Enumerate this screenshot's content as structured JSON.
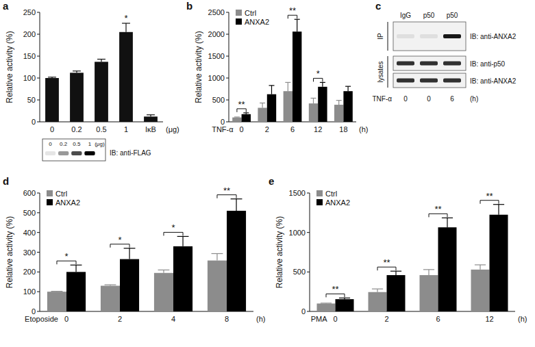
{
  "chart_data": [
    {
      "type": "bar",
      "title": "a",
      "ylabel": "Relative activity (%)",
      "xunit": "(μg)",
      "categories": [
        "0",
        "0.2",
        "0.5",
        "1",
        "IκB"
      ],
      "values": [
        100,
        112,
        137,
        205,
        12
      ],
      "errors": [
        2,
        4,
        6,
        20,
        4
      ],
      "color": "#111111",
      "ylim": [
        0,
        250
      ],
      "yticks": [
        0,
        50,
        100,
        150,
        200,
        250
      ],
      "grid": false,
      "annotations": [
        {
          "category": "1",
          "text": "*"
        }
      ],
      "inset": {
        "lanes": [
          "0",
          "0.2",
          "0.5",
          "1"
        ],
        "unit": "(μg)",
        "label": "IB: anti-FLAG"
      }
    },
    {
      "type": "bar",
      "title": "b",
      "ylabel": "Relative activity (%)",
      "xlabel": "TNF-α",
      "xunit": "(h)",
      "categories": [
        "0",
        "2",
        "6",
        "12",
        "18"
      ],
      "series": [
        {
          "name": "Ctrl",
          "color": "#8c8c8c",
          "values": [
            100,
            320,
            700,
            420,
            390
          ],
          "errors": [
            10,
            110,
            200,
            120,
            100
          ]
        },
        {
          "name": "ANXA2",
          "color": "#000000",
          "values": [
            175,
            630,
            2060,
            800,
            700
          ],
          "errors": [
            30,
            200,
            280,
            100,
            110
          ]
        }
      ],
      "ylim": [
        0,
        2500
      ],
      "yticks": [
        0,
        500,
        1000,
        1500,
        2000,
        2500
      ],
      "grid": false,
      "legend": "upper left",
      "annotations": [
        {
          "category": "0",
          "text": "**"
        },
        {
          "category": "6",
          "text": "**"
        },
        {
          "category": "12",
          "text": "*"
        }
      ]
    },
    {
      "type": "bar",
      "title": "d",
      "ylabel": "Relative activity (%)",
      "xlabel": "Etoposide",
      "xunit": "(h)",
      "categories": [
        "0",
        "2",
        "4",
        "8"
      ],
      "series": [
        {
          "name": "Ctrl",
          "color": "#8c8c8c",
          "values": [
            100,
            130,
            195,
            258
          ],
          "errors": [
            2,
            5,
            15,
            35
          ]
        },
        {
          "name": "ANXA2",
          "color": "#000000",
          "values": [
            200,
            265,
            330,
            510
          ],
          "errors": [
            35,
            55,
            50,
            60
          ]
        }
      ],
      "ylim": [
        0,
        600
      ],
      "yticks": [
        0,
        100,
        200,
        300,
        400,
        500,
        600
      ],
      "grid": false,
      "legend": "upper left",
      "annotations": [
        {
          "category": "0",
          "text": "*"
        },
        {
          "category": "2",
          "text": "*"
        },
        {
          "category": "4",
          "text": "*"
        },
        {
          "category": "8",
          "text": "**"
        }
      ]
    },
    {
      "type": "bar",
      "title": "e",
      "ylabel": "Relative activity (%)",
      "xlabel": "PMA",
      "xunit": "(h)",
      "categories": [
        "0",
        "2",
        "6",
        "12"
      ],
      "series": [
        {
          "name": "Ctrl",
          "color": "#8c8c8c",
          "values": [
            100,
            245,
            460,
            530
          ],
          "errors": [
            5,
            40,
            70,
            60
          ]
        },
        {
          "name": "ANXA2",
          "color": "#000000",
          "values": [
            155,
            460,
            1065,
            1225
          ],
          "errors": [
            15,
            50,
            120,
            130
          ]
        }
      ],
      "ylim": [
        0,
        1500
      ],
      "yticks": [
        0,
        500,
        1000,
        1500
      ],
      "grid": false,
      "legend": "upper left",
      "annotations": [
        {
          "category": "0",
          "text": "**"
        },
        {
          "category": "2",
          "text": "**"
        },
        {
          "category": "6",
          "text": "**"
        },
        {
          "category": "12",
          "text": "**"
        }
      ]
    }
  ],
  "blot": {
    "title": "c",
    "lanes": [
      "IgG",
      "p50",
      "p50"
    ],
    "groups": [
      {
        "label": "IP",
        "rows": [
          "IB: anti-ANXA2"
        ]
      },
      {
        "label": "lysates",
        "rows": [
          "IB: anti-p50",
          "IB: anti-ANXA2"
        ]
      }
    ],
    "treatment": "TNF-α",
    "times": [
      "0",
      "0",
      "6"
    ],
    "unit": "(h)"
  }
}
